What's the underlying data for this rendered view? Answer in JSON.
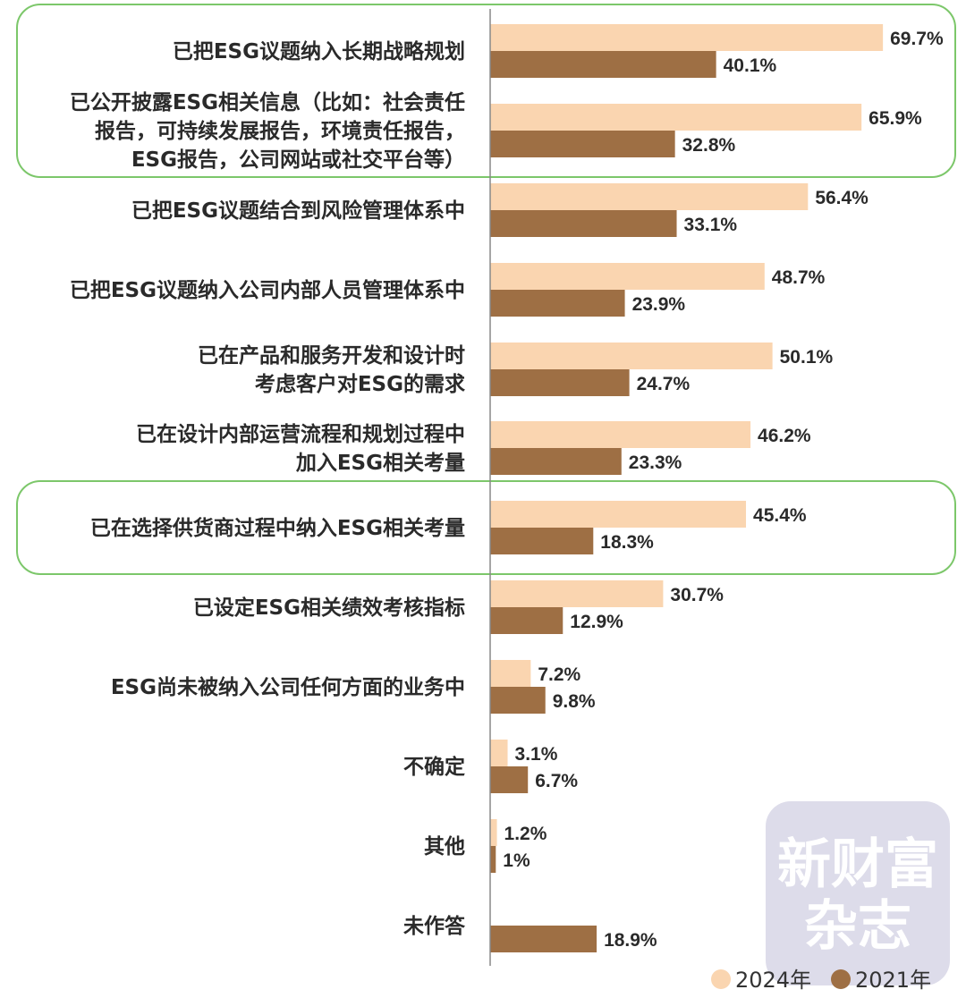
{
  "chart_data": {
    "type": "bar",
    "orientation": "horizontal",
    "categories": [
      [
        "已把ESG议题纳入长期战略规划"
      ],
      [
        "已公开披露ESG相关信息（比如：社会责任",
        "报告，可持续发展报告，环境责任报告，",
        "ESG报告，公司网站或社交平台等）"
      ],
      [
        "已把ESG议题结合到风险管理体系中"
      ],
      [
        "已把ESG议题纳入公司内部人员管理体系中"
      ],
      [
        "已在产品和服务开发和设计时",
        "考虑客户对ESG的需求"
      ],
      [
        "已在设计内部运营流程和规划过程中",
        "加入ESG相关考量"
      ],
      [
        "已在选择供货商过程中纳入ESG相关考量"
      ],
      [
        "已设定ESG相关绩效考核指标"
      ],
      [
        "ESG尚未被纳入公司任何方面的业务中"
      ],
      [
        "不确定"
      ],
      [
        "其他"
      ],
      [
        "未作答"
      ]
    ],
    "series": [
      {
        "name": "2024年",
        "values": [
          69.7,
          65.9,
          56.4,
          48.7,
          50.1,
          46.2,
          45.4,
          30.7,
          7.2,
          3.1,
          1.2,
          null
        ],
        "labels": [
          "69.7%",
          "65.9%",
          "56.4%",
          "48.7%",
          "50.1%",
          "46.2%",
          "45.4%",
          "30.7%",
          "7.2%",
          "3.1%",
          "1.2%",
          ""
        ]
      },
      {
        "name": "2021年",
        "values": [
          40.1,
          32.8,
          33.1,
          23.9,
          24.7,
          23.3,
          18.3,
          12.9,
          9.8,
          6.7,
          1,
          18.9
        ],
        "labels": [
          "40.1%",
          "32.8%",
          "33.1%",
          "23.9%",
          "24.7%",
          "23.3%",
          "18.3%",
          "12.9%",
          "9.8%",
          "6.7%",
          "1%",
          "18.9%"
        ]
      }
    ],
    "highlighted_groups": [
      [
        0,
        1
      ],
      [
        6
      ]
    ],
    "legend_position": "bottom-right",
    "grid": false
  },
  "colors": {
    "series_2024": "#FAD5B0",
    "series_2021": "#9E6F44",
    "highlight_border": "#7CC76A",
    "axis": "#888888",
    "watermark_bg": "#D9D8E8"
  },
  "watermark": {
    "line1": "新财富",
    "line2": "杂志"
  }
}
